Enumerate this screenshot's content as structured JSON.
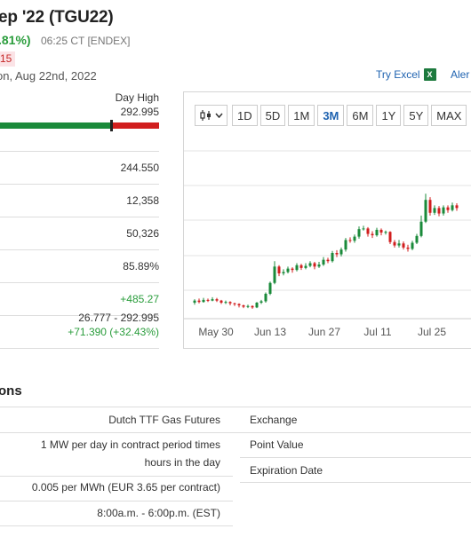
{
  "header": {
    "title": "ep '22 (TGU22)",
    "change_pct": ".81%)",
    "quote_meta": "06:25 CT [ENDEX]",
    "badge": "15",
    "as_of": "on, Aug 22nd, 2022"
  },
  "tools": {
    "try_excel": "Try Excel",
    "excel_icon": "X",
    "alerts": "Aler"
  },
  "day_range": {
    "label": "Day High",
    "high": "292.995",
    "position_fraction": 0.7
  },
  "stats": [
    {
      "value": "244.550",
      "tone": "neutral"
    },
    {
      "value": "12,358",
      "tone": "neutral"
    },
    {
      "value": "50,326",
      "tone": "neutral"
    },
    {
      "value": "85.89%",
      "tone": "neutral"
    },
    {
      "value": "+485.27",
      "tone": "up"
    },
    {
      "value": "+71.390 (+32.43%)",
      "tone": "up"
    },
    {
      "value": "26.777 - 292.995",
      "tone": "neutral"
    }
  ],
  "chart_toolbar": {
    "type_icon": "candlestick-icon",
    "ranges": [
      "1D",
      "5D",
      "1M",
      "3M",
      "6M",
      "1Y",
      "5Y",
      "MAX"
    ],
    "active_range": "3M"
  },
  "chart_data": {
    "type": "candlestick",
    "x_ticks": [
      "May 30",
      "Jun 13",
      "Jun 27",
      "Jul 11",
      "Jul 25"
    ],
    "up_color": "#1a8a3a",
    "down_color": "#d11e1e",
    "points": [
      {
        "o": 97,
        "c": 100,
        "h": 102,
        "l": 94
      },
      {
        "o": 100,
        "c": 98,
        "h": 103,
        "l": 96
      },
      {
        "o": 98,
        "c": 101,
        "h": 104,
        "l": 97
      },
      {
        "o": 101,
        "c": 100,
        "h": 103,
        "l": 98
      },
      {
        "o": 100,
        "c": 102,
        "h": 105,
        "l": 99
      },
      {
        "o": 102,
        "c": 100,
        "h": 104,
        "l": 98
      },
      {
        "o": 100,
        "c": 97,
        "h": 101,
        "l": 95
      },
      {
        "o": 97,
        "c": 98,
        "h": 100,
        "l": 95
      },
      {
        "o": 98,
        "c": 96,
        "h": 99,
        "l": 93
      },
      {
        "o": 96,
        "c": 95,
        "h": 97,
        "l": 92
      },
      {
        "o": 95,
        "c": 93,
        "h": 96,
        "l": 90
      },
      {
        "o": 93,
        "c": 91,
        "h": 94,
        "l": 89
      },
      {
        "o": 91,
        "c": 92,
        "h": 94,
        "l": 89
      },
      {
        "o": 92,
        "c": 90,
        "h": 93,
        "l": 88
      },
      {
        "o": 90,
        "c": 97,
        "h": 98,
        "l": 89
      },
      {
        "o": 97,
        "c": 99,
        "h": 101,
        "l": 95
      },
      {
        "o": 99,
        "c": 110,
        "h": 112,
        "l": 97
      },
      {
        "o": 110,
        "c": 126,
        "h": 128,
        "l": 108
      },
      {
        "o": 126,
        "c": 150,
        "h": 158,
        "l": 124
      },
      {
        "o": 150,
        "c": 140,
        "h": 152,
        "l": 136
      },
      {
        "o": 140,
        "c": 142,
        "h": 146,
        "l": 137
      },
      {
        "o": 142,
        "c": 147,
        "h": 150,
        "l": 140
      },
      {
        "o": 147,
        "c": 145,
        "h": 149,
        "l": 141
      },
      {
        "o": 145,
        "c": 152,
        "h": 155,
        "l": 143
      },
      {
        "o": 152,
        "c": 148,
        "h": 154,
        "l": 145
      },
      {
        "o": 148,
        "c": 151,
        "h": 155,
        "l": 146
      },
      {
        "o": 151,
        "c": 155,
        "h": 158,
        "l": 149
      },
      {
        "o": 155,
        "c": 150,
        "h": 157,
        "l": 146
      },
      {
        "o": 150,
        "c": 153,
        "h": 157,
        "l": 148
      },
      {
        "o": 153,
        "c": 160,
        "h": 164,
        "l": 151
      },
      {
        "o": 160,
        "c": 158,
        "h": 163,
        "l": 155
      },
      {
        "o": 158,
        "c": 170,
        "h": 173,
        "l": 156
      },
      {
        "o": 170,
        "c": 168,
        "h": 174,
        "l": 164
      },
      {
        "o": 168,
        "c": 175,
        "h": 178,
        "l": 165
      },
      {
        "o": 175,
        "c": 189,
        "h": 192,
        "l": 172
      },
      {
        "o": 189,
        "c": 188,
        "h": 193,
        "l": 185
      },
      {
        "o": 188,
        "c": 194,
        "h": 197,
        "l": 185
      },
      {
        "o": 194,
        "c": 205,
        "h": 209,
        "l": 191
      },
      {
        "o": 205,
        "c": 206,
        "h": 210,
        "l": 203
      },
      {
        "o": 206,
        "c": 198,
        "h": 208,
        "l": 194
      },
      {
        "o": 198,
        "c": 196,
        "h": 202,
        "l": 192
      },
      {
        "o": 196,
        "c": 204,
        "h": 207,
        "l": 194
      },
      {
        "o": 204,
        "c": 200,
        "h": 206,
        "l": 196
      },
      {
        "o": 200,
        "c": 201,
        "h": 203,
        "l": 197
      },
      {
        "o": 201,
        "c": 186,
        "h": 202,
        "l": 183
      },
      {
        "o": 186,
        "c": 181,
        "h": 189,
        "l": 178
      },
      {
        "o": 181,
        "c": 184,
        "h": 189,
        "l": 178
      },
      {
        "o": 184,
        "c": 178,
        "h": 187,
        "l": 175
      },
      {
        "o": 178,
        "c": 176,
        "h": 182,
        "l": 172
      },
      {
        "o": 176,
        "c": 185,
        "h": 188,
        "l": 174
      },
      {
        "o": 185,
        "c": 195,
        "h": 198,
        "l": 183
      },
      {
        "o": 195,
        "c": 216,
        "h": 225,
        "l": 193
      },
      {
        "o": 216,
        "c": 248,
        "h": 257,
        "l": 214
      },
      {
        "o": 248,
        "c": 229,
        "h": 252,
        "l": 225
      },
      {
        "o": 229,
        "c": 236,
        "h": 240,
        "l": 226
      },
      {
        "o": 236,
        "c": 228,
        "h": 239,
        "l": 224
      },
      {
        "o": 228,
        "c": 237,
        "h": 240,
        "l": 225
      },
      {
        "o": 237,
        "c": 233,
        "h": 240,
        "l": 229
      },
      {
        "o": 233,
        "c": 240,
        "h": 244,
        "l": 231
      },
      {
        "o": 240,
        "c": 236,
        "h": 243,
        "l": 232
      }
    ]
  },
  "specs": {
    "title": "ons",
    "rows": [
      {
        "left": "Dutch TTF Gas Futures",
        "right": "Exchange"
      },
      {
        "left": "1 MW per day in contract period times",
        "left2": "hours in the day",
        "right": "Point Value"
      },
      {
        "left": "",
        "right": "Expiration Date"
      },
      {
        "left": "0.005 per MWh (EUR 3.65 per contract)",
        "right": ""
      },
      {
        "left": "8:00a.m. - 6:00p.m. (EST)",
        "right": ""
      }
    ]
  }
}
